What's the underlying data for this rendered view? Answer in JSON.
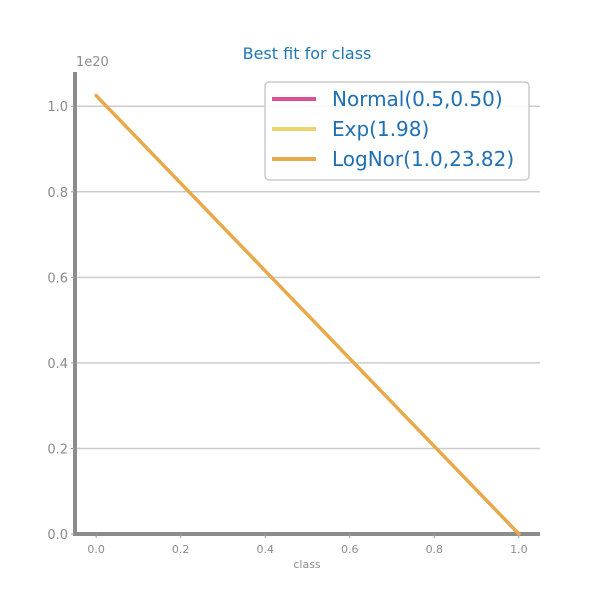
{
  "chart_data": {
    "type": "line",
    "title": "Best fit for class",
    "xlabel": "class",
    "ylabel": "",
    "y_offset_label": "1e20",
    "xlim": [
      -0.05,
      1.05
    ],
    "ylim": [
      0,
      1.08
    ],
    "x_ticks": [
      0.0,
      0.2,
      0.4,
      0.6,
      0.8,
      1.0
    ],
    "x_tick_labels": [
      "0.0",
      "0.2",
      "0.4",
      "0.6",
      "0.8",
      "1.0"
    ],
    "y_ticks": [
      0.0,
      0.2,
      0.4,
      0.6,
      0.8,
      1.0
    ],
    "y_tick_labels": [
      "0.0",
      "0.2",
      "0.4",
      "0.6",
      "0.8",
      "1.0"
    ],
    "grid": "horizontal",
    "legend_position": "top-right",
    "series": [
      {
        "name": "Normal(0.5,0.50)",
        "color": "#d94f98",
        "x": [],
        "y": []
      },
      {
        "name": "Exp(1.98)",
        "color": "#ecd36e",
        "x": [],
        "y": []
      },
      {
        "name": "LogNor(1.0,23.82)",
        "color": "#e8a94a",
        "x": [
          0.0,
          1.0
        ],
        "y": [
          1.025,
          0.0
        ]
      }
    ]
  }
}
